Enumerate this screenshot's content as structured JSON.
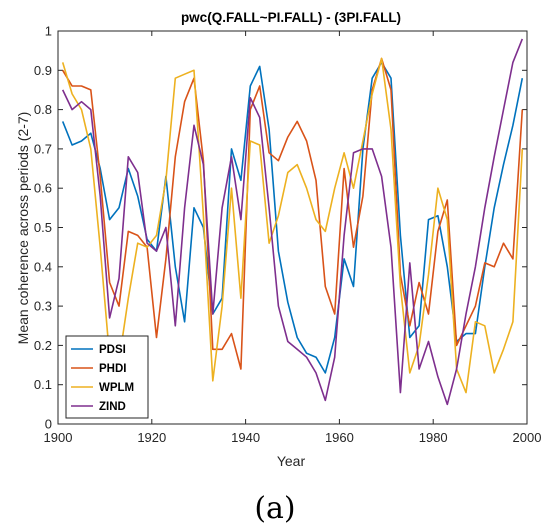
{
  "chart_data": {
    "type": "line",
    "title": "pwc(Q.FALL~PI.FALL) - (3PI.FALL)",
    "xlabel": "Year",
    "ylabel": "Mean coherence across periods (2-7)",
    "xlim": [
      1900,
      2000
    ],
    "ylim": [
      0,
      1
    ],
    "xticks": [
      1900,
      1920,
      1940,
      1960,
      1980,
      2000
    ],
    "yticks": [
      0,
      0.1,
      0.2,
      0.3,
      0.4,
      0.5,
      0.6,
      0.7,
      0.8,
      0.9,
      1
    ],
    "grid": false,
    "legend_position": "bottom-left",
    "caption": "(a)",
    "x": [
      1901,
      1903,
      1905,
      1907,
      1909,
      1911,
      1913,
      1915,
      1917,
      1919,
      1921,
      1923,
      1925,
      1927,
      1929,
      1931,
      1933,
      1935,
      1937,
      1939,
      1941,
      1943,
      1945,
      1947,
      1949,
      1951,
      1953,
      1955,
      1957,
      1959,
      1961,
      1963,
      1965,
      1967,
      1969,
      1971,
      1973,
      1975,
      1977,
      1979,
      1981,
      1983,
      1985,
      1987,
      1989,
      1991,
      1993,
      1995,
      1997,
      1999
    ],
    "series": [
      {
        "name": "PDSI",
        "color": "#0072BD",
        "values": [
          0.77,
          0.71,
          0.72,
          0.74,
          0.65,
          0.52,
          0.55,
          0.65,
          0.58,
          0.47,
          0.44,
          0.63,
          0.4,
          0.26,
          0.55,
          0.5,
          0.28,
          0.32,
          0.7,
          0.62,
          0.86,
          0.91,
          0.75,
          0.44,
          0.31,
          0.22,
          0.18,
          0.17,
          0.13,
          0.22,
          0.42,
          0.35,
          0.7,
          0.88,
          0.92,
          0.88,
          0.48,
          0.22,
          0.25,
          0.52,
          0.53,
          0.4,
          0.21,
          0.23,
          0.23,
          0.4,
          0.55,
          0.66,
          0.76,
          0.88
        ]
      },
      {
        "name": "PHDI",
        "color": "#D95319",
        "values": [
          0.9,
          0.86,
          0.86,
          0.85,
          0.63,
          0.36,
          0.3,
          0.49,
          0.48,
          0.45,
          0.22,
          0.42,
          0.68,
          0.82,
          0.88,
          0.67,
          0.19,
          0.19,
          0.23,
          0.14,
          0.8,
          0.86,
          0.69,
          0.67,
          0.73,
          0.77,
          0.72,
          0.62,
          0.35,
          0.28,
          0.65,
          0.45,
          0.58,
          0.85,
          0.93,
          0.85,
          0.38,
          0.25,
          0.36,
          0.28,
          0.49,
          0.57,
          0.2,
          0.25,
          0.3,
          0.41,
          0.4,
          0.46,
          0.42,
          0.8
        ]
      },
      {
        "name": "WPLM",
        "color": "#EDB120",
        "values": [
          0.92,
          0.84,
          0.8,
          0.7,
          0.45,
          0.17,
          0.16,
          0.32,
          0.46,
          0.45,
          0.48,
          0.62,
          0.88,
          0.89,
          0.9,
          0.53,
          0.11,
          0.3,
          0.6,
          0.32,
          0.72,
          0.71,
          0.46,
          0.53,
          0.64,
          0.66,
          0.6,
          0.52,
          0.49,
          0.6,
          0.69,
          0.6,
          0.72,
          0.84,
          0.93,
          0.75,
          0.35,
          0.13,
          0.2,
          0.38,
          0.6,
          0.52,
          0.14,
          0.08,
          0.26,
          0.25,
          0.13,
          0.19,
          0.26,
          0.7
        ]
      },
      {
        "name": "ZIND",
        "color": "#7E2F8E",
        "values": [
          0.85,
          0.8,
          0.82,
          0.8,
          0.58,
          0.27,
          0.37,
          0.68,
          0.64,
          0.46,
          0.44,
          0.5,
          0.25,
          0.55,
          0.76,
          0.66,
          0.28,
          0.55,
          0.68,
          0.52,
          0.83,
          0.78,
          0.55,
          0.3,
          0.21,
          0.19,
          0.17,
          0.13,
          0.06,
          0.17,
          0.48,
          0.69,
          0.7,
          0.7,
          0.63,
          0.45,
          0.08,
          0.41,
          0.14,
          0.21,
          0.12,
          0.05,
          0.14,
          0.28,
          0.4,
          0.55,
          0.68,
          0.8,
          0.92,
          0.98
        ]
      }
    ]
  }
}
